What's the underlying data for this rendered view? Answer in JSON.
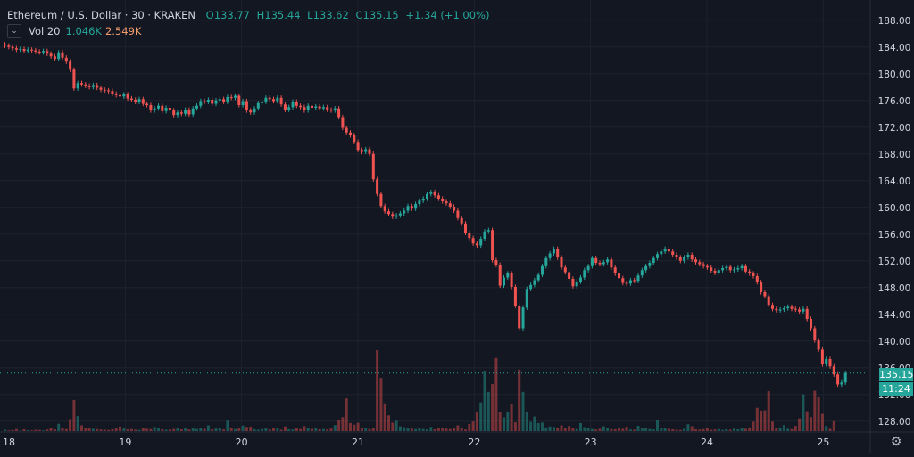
{
  "header": {
    "title": "Ethereum / U.S. Dollar · 30 · KRAKEN",
    "open": "O133.77",
    "high": "H135.44",
    "low": "L133.62",
    "close": "C135.15",
    "change": "+1.34 (+1.00%)"
  },
  "volume_legend": {
    "collapse_icon": "chevron-down-icon",
    "label": "Vol 20",
    "value1": "1.046K",
    "value2": "2.549K"
  },
  "price_badges": {
    "last_price": "135.15",
    "countdown": "11:24"
  },
  "colors": {
    "background": "#131722",
    "up": "#26a69a",
    "down": "#ef5350",
    "grid": "#1e222d",
    "axis_text": "#d1d4dc"
  },
  "settings_icon": "gear-icon",
  "chart_data": {
    "type": "candlestick",
    "symbol": "ETHUSD",
    "interval": "30",
    "exchange": "KRAKEN",
    "x_ticks": [
      "18",
      "19",
      "20",
      "21",
      "22",
      "23",
      "24",
      "25"
    ],
    "y_ticks": [
      "128.00",
      "132.00",
      "136.00",
      "140.00",
      "144.00",
      "148.00",
      "152.00",
      "156.00",
      "160.00",
      "164.00",
      "168.00",
      "172.00",
      "176.00",
      "180.00",
      "184.00",
      "188.00"
    ],
    "ylim": [
      126.5,
      190.5
    ],
    "grid": true,
    "close_series": [
      184.2,
      184.0,
      183.8,
      183.6,
      183.7,
      183.4,
      183.6,
      183.5,
      183.3,
      183.2,
      183.4,
      183.0,
      182.6,
      182.2,
      183.2,
      182.4,
      181.8,
      180.6,
      177.8,
      178.6,
      178.4,
      178.2,
      178.0,
      178.3,
      177.9,
      177.6,
      177.5,
      177.4,
      177.0,
      176.8,
      176.6,
      176.9,
      176.3,
      176.1,
      175.8,
      176.2,
      175.5,
      175.3,
      174.5,
      174.8,
      175.2,
      174.4,
      174.9,
      174.5,
      173.8,
      174.2,
      174.0,
      174.6,
      173.9,
      174.8,
      175.2,
      175.9,
      175.8,
      176.1,
      175.5,
      176.0,
      176.2,
      175.8,
      176.5,
      176.4,
      176.7,
      175.3,
      175.9,
      174.5,
      174.2,
      174.8,
      175.6,
      175.8,
      176.4,
      176.2,
      175.9,
      176.4,
      175.4,
      174.6,
      175.0,
      175.8,
      175.2,
      175.0,
      174.5,
      175.2,
      174.9,
      175.1,
      174.8,
      175.0,
      174.6,
      174.5,
      174.8,
      173.5,
      171.9,
      171.2,
      170.8,
      169.8,
      168.6,
      168.3,
      168.7,
      168.0,
      164.2,
      162.0,
      160.2,
      159.4,
      159.0,
      158.6,
      158.8,
      159.1,
      159.5,
      160.2,
      159.8,
      160.5,
      161.0,
      161.3,
      162.0,
      162.3,
      161.8,
      161.3,
      160.9,
      160.6,
      160.1,
      159.5,
      158.4,
      157.6,
      156.2,
      155.4,
      154.6,
      154.3,
      155.3,
      156.4,
      156.6,
      152.1,
      151.4,
      148.3,
      149.5,
      150.1,
      148.1,
      145.3,
      141.9,
      145.0,
      147.8,
      148.4,
      149.1,
      149.9,
      151.2,
      152.4,
      153.1,
      153.8,
      152.5,
      151.0,
      150.3,
      149.3,
      148.2,
      148.9,
      149.5,
      150.6,
      151.2,
      152.4,
      151.7,
      151.5,
      151.8,
      152.2,
      151.0,
      150.1,
      149.4,
      148.7,
      148.6,
      149.1,
      149.0,
      149.8,
      150.6,
      151.2,
      151.7,
      152.4,
      153.0,
      153.4,
      153.8,
      153.4,
      152.9,
      152.5,
      152.0,
      152.5,
      152.9,
      152.2,
      151.8,
      151.5,
      151.2,
      151.0,
      150.5,
      150.2,
      150.6,
      150.9,
      151.1,
      150.6,
      150.7,
      150.9,
      151.2,
      150.4,
      150.1,
      149.7,
      148.8,
      147.3,
      146.7,
      145.4,
      144.8,
      144.6,
      144.7,
      144.9,
      145.1,
      144.8,
      144.7,
      144.4,
      144.8,
      143.3,
      141.9,
      140.1,
      138.7,
      136.5,
      137.3,
      136.2,
      135.0,
      133.5,
      133.8,
      135.2
    ],
    "volume_label": "Vol 20",
    "volume_ylim": [
      0,
      40000
    ],
    "volume_series": [
      600,
      300,
      500,
      900,
      200,
      800,
      400,
      300,
      600,
      500,
      300,
      700,
      1500,
      800,
      3200,
      1200,
      900,
      5200,
      13500,
      6500,
      2500,
      1500,
      1200,
      1000,
      900,
      700,
      600,
      500,
      800,
      1400,
      2000,
      1100,
      800,
      900,
      600,
      500,
      1500,
      1000,
      900,
      1800,
      1200,
      800,
      600,
      700,
      900,
      1200,
      800,
      1500,
      700,
      1200,
      900,
      1400,
      1000,
      2500,
      800,
      1100,
      1300,
      700,
      4500,
      1600,
      900,
      1500,
      2400,
      1800,
      1900,
      800,
      600,
      900,
      1200,
      700,
      1500,
      1100,
      600,
      2000,
      800,
      700,
      1300,
      900,
      2200,
      1500,
      1000,
      1200,
      800,
      900,
      700,
      1100,
      2600,
      4800,
      6000,
      14200,
      3500,
      2800,
      3600,
      1600,
      1200,
      900,
      1400,
      35000,
      23000,
      12000,
      6800,
      3700,
      4500,
      2100,
      1700,
      1300,
      1100,
      900,
      1300,
      900,
      700,
      1800,
      800,
      1200,
      1500,
      1100,
      900,
      1400,
      2500,
      1300,
      700,
      3100,
      4200,
      8500,
      12400,
      26000,
      17000,
      20400,
      31600,
      8200,
      6000,
      8500,
      11800,
      3800,
      26600,
      17000,
      8500,
      4000,
      6300,
      3500,
      3700,
      1600,
      2000,
      1800,
      1200,
      2500,
      1500,
      2200,
      1300,
      900,
      3500,
      1700,
      1200,
      900,
      700,
      1000,
      2100,
      1500,
      900,
      800,
      1300,
      1000,
      1900,
      700,
      600,
      2300,
      1100,
      1200,
      900,
      700,
      4600,
      1400,
      1300,
      1000,
      800,
      600,
      500,
      1000,
      3000,
      2100,
      800,
      700,
      900,
      1200,
      600,
      700,
      900,
      500,
      800,
      600,
      1100,
      800,
      1500,
      1000,
      1600,
      4100,
      10100,
      8900,
      9000,
      17300,
      4100,
      1200,
      1600,
      2600,
      1000,
      900,
      2300,
      5500,
      15900,
      8600,
      6100,
      17500,
      14600,
      7500,
      2200,
      1000,
      4300
    ]
  }
}
